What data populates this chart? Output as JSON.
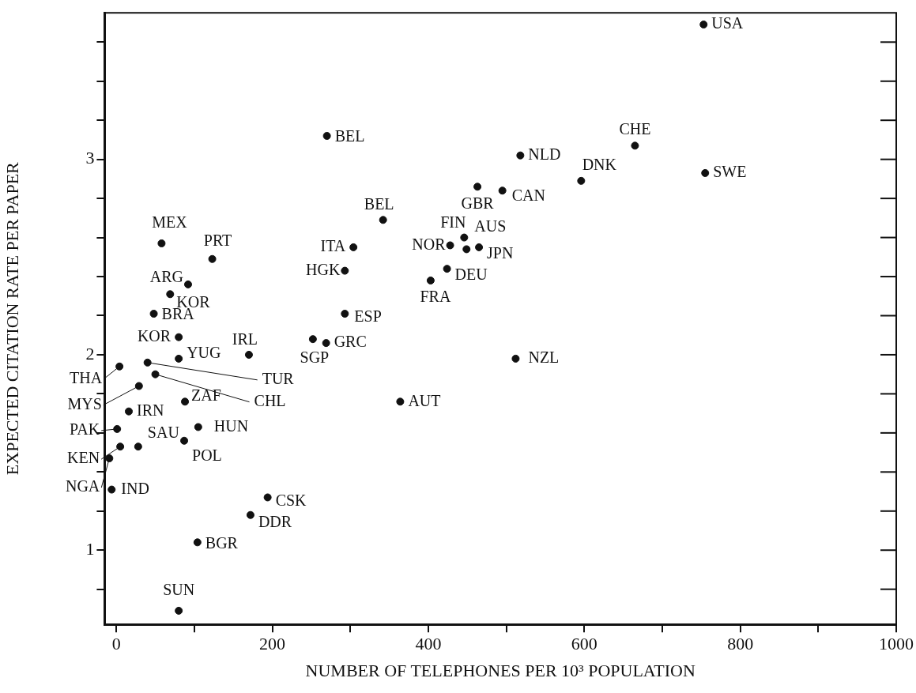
{
  "chart_data": {
    "type": "scatter",
    "xlabel": "NUMBER OF TELEPHONES PER 10³ POPULATION",
    "ylabel": "EXPECTED CITATION RATE PER PAPER",
    "x": [
      753,
      665,
      755,
      596,
      495,
      518,
      463,
      270,
      342,
      446,
      428,
      449,
      465,
      304,
      293,
      424,
      403,
      293,
      252,
      269,
      512,
      364,
      58,
      123,
      92,
      69,
      48,
      80,
      80,
      170,
      40,
      50,
      4,
      29,
      88,
      16,
      105,
      1,
      28,
      5,
      87,
      -9,
      -6,
      194,
      172,
      104,
      80
    ],
    "series": [
      {
        "color": "#111111",
        "values": [
          3.69,
          3.07,
          2.93,
          2.89,
          2.84,
          3.02,
          2.86,
          3.12,
          2.69,
          2.6,
          2.56,
          2.54,
          2.55,
          2.55,
          2.43,
          2.44,
          2.38,
          2.21,
          2.08,
          2.06,
          1.98,
          1.76,
          2.57,
          2.49,
          2.36,
          2.31,
          2.21,
          2.09,
          1.98,
          2.0,
          1.96,
          1.9,
          1.94,
          1.84,
          1.76,
          1.71,
          1.63,
          1.62,
          1.53,
          1.53,
          1.56,
          1.47,
          1.31,
          1.27,
          1.18,
          1.04,
          0.69
        ]
      }
    ],
    "xlim": [
      -15,
      1000
    ],
    "xticks": [
      0,
      {
        "value": 100,
        "label": null
      },
      200,
      {
        "value": 300,
        "label": null
      },
      400,
      {
        "value": 500,
        "label": null
      },
      600,
      {
        "value": 700,
        "label": null
      },
      800,
      {
        "value": 900,
        "label": null
      },
      1000
    ],
    "ylim": [
      0.62,
      3.75
    ],
    "yticks": [
      {
        "value": 0.8,
        "label": null
      },
      1,
      {
        "value": 1.2,
        "label": null
      },
      {
        "value": 1.4,
        "label": null
      },
      {
        "value": 1.6,
        "label": null
      },
      {
        "value": 1.8,
        "label": null
      },
      2,
      {
        "value": 2.2,
        "label": null
      },
      {
        "value": 2.4,
        "label": null
      },
      {
        "value": 2.6,
        "label": null
      },
      {
        "value": 2.8,
        "label": null
      },
      3,
      {
        "value": 3.2,
        "label": null
      },
      {
        "value": 3.4,
        "label": null
      },
      {
        "value": 3.6,
        "label": null
      }
    ],
    "grid": false,
    "legend": false,
    "marker": "circle",
    "annotations": [
      {
        "text": "USA",
        "x": 753,
        "y": 3.69
      },
      {
        "text": "CHE",
        "x": 665,
        "y": 3.07
      },
      {
        "text": "SWE",
        "x": 755,
        "y": 2.93
      },
      {
        "text": "DNK",
        "x": 596,
        "y": 2.89
      },
      {
        "text": "CAN",
        "x": 495,
        "y": 2.84
      },
      {
        "text": "NLD",
        "x": 518,
        "y": 3.02
      },
      {
        "text": "GBR",
        "x": 463,
        "y": 2.86
      },
      {
        "text": "BEL",
        "x": 270,
        "y": 3.12
      },
      {
        "text": "BEL",
        "x": 342,
        "y": 2.69
      },
      {
        "text": "FIN",
        "x": 446,
        "y": 2.6
      },
      {
        "text": "NOR",
        "x": 428,
        "y": 2.56
      },
      {
        "text": "AUS",
        "x": 449,
        "y": 2.54
      },
      {
        "text": "JPN",
        "x": 465,
        "y": 2.55
      },
      {
        "text": "ITA",
        "x": 304,
        "y": 2.55
      },
      {
        "text": "HGK",
        "x": 293,
        "y": 2.43
      },
      {
        "text": "DEU",
        "x": 424,
        "y": 2.44
      },
      {
        "text": "FRA",
        "x": 403,
        "y": 2.38
      },
      {
        "text": "ESP",
        "x": 293,
        "y": 2.21
      },
      {
        "text": "SGP",
        "x": 252,
        "y": 2.08
      },
      {
        "text": "GRC",
        "x": 269,
        "y": 2.06
      },
      {
        "text": "NZL",
        "x": 512,
        "y": 1.98
      },
      {
        "text": "AUT",
        "x": 364,
        "y": 1.76
      },
      {
        "text": "MEX",
        "x": 58,
        "y": 2.57
      },
      {
        "text": "PRT",
        "x": 123,
        "y": 2.49
      },
      {
        "text": "ARG",
        "x": 92,
        "y": 2.36
      },
      {
        "text": "KOR",
        "x": 69,
        "y": 2.31
      },
      {
        "text": "BRA",
        "x": 48,
        "y": 2.21
      },
      {
        "text": "KOR",
        "x": 80,
        "y": 2.09
      },
      {
        "text": "YUG",
        "x": 80,
        "y": 1.98
      },
      {
        "text": "IRL",
        "x": 170,
        "y": 2.0
      },
      {
        "text": "TUR",
        "x": 40,
        "y": 1.96
      },
      {
        "text": "CHL",
        "x": 50,
        "y": 1.9
      },
      {
        "text": "THA",
        "x": 4,
        "y": 1.94
      },
      {
        "text": "MYS",
        "x": 29,
        "y": 1.84
      },
      {
        "text": "ZAF",
        "x": 88,
        "y": 1.76
      },
      {
        "text": "IRN",
        "x": 16,
        "y": 1.71
      },
      {
        "text": "HUN",
        "x": 105,
        "y": 1.63
      },
      {
        "text": "PAK",
        "x": 1,
        "y": 1.62
      },
      {
        "text": "SAU",
        "x": 28,
        "y": 1.53
      },
      {
        "text": "KEN",
        "x": 5,
        "y": 1.53
      },
      {
        "text": "POL",
        "x": 87,
        "y": 1.56
      },
      {
        "text": "NGA",
        "x": -9,
        "y": 1.47
      },
      {
        "text": "IND",
        "x": -6,
        "y": 1.31
      },
      {
        "text": "CSK",
        "x": 194,
        "y": 1.27
      },
      {
        "text": "DDR",
        "x": 172,
        "y": 1.18
      },
      {
        "text": "BGR",
        "x": 104,
        "y": 1.04
      },
      {
        "text": "SUN",
        "x": 80,
        "y": 0.69
      }
    ]
  }
}
